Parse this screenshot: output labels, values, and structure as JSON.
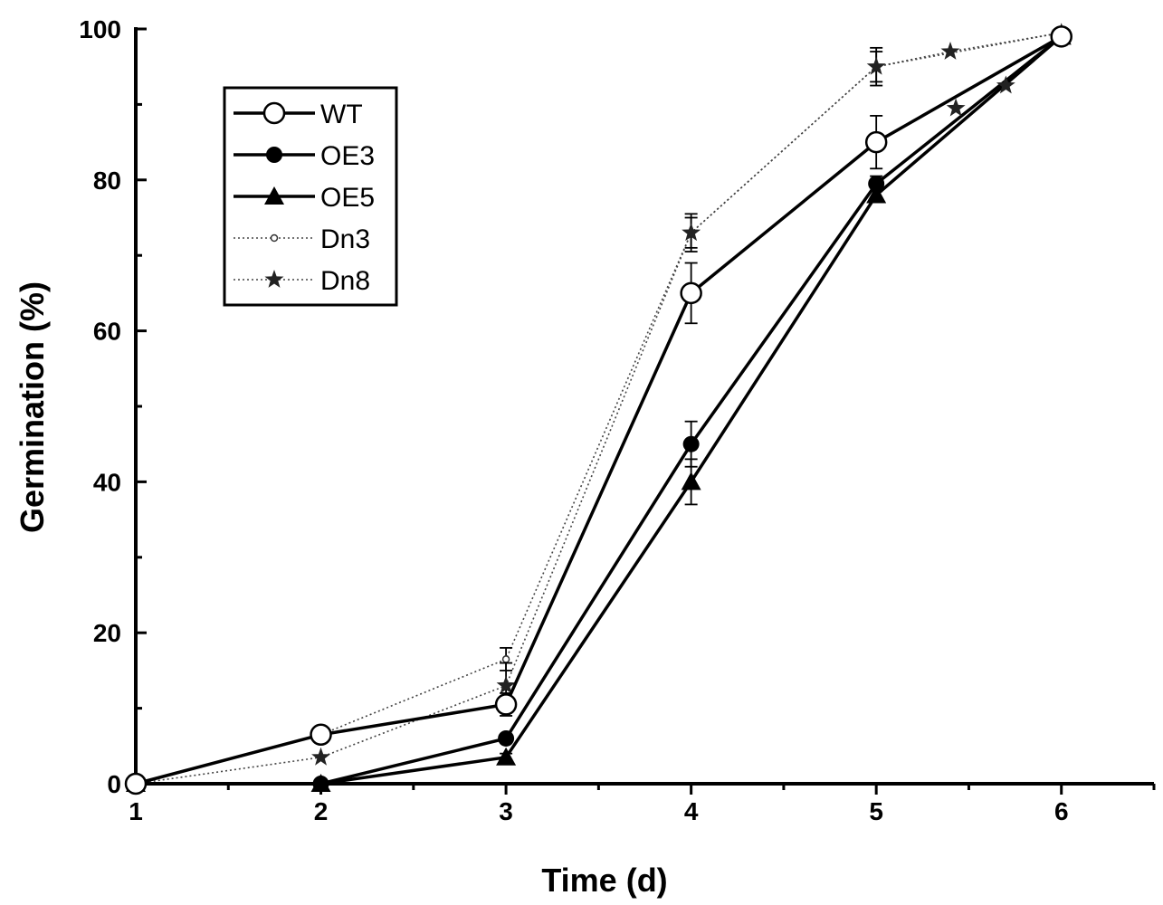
{
  "chart_data": {
    "type": "line",
    "title": "",
    "xlabel": "Time  (d)",
    "ylabel": "Germination (%)",
    "xlim": [
      1,
      6.5
    ],
    "ylim": [
      0,
      100
    ],
    "xticks": [
      1,
      2,
      3,
      4,
      5,
      6
    ],
    "yticks": [
      0,
      20,
      40,
      60,
      80,
      100
    ],
    "legend_position": "top-left",
    "series": [
      {
        "name": "WT",
        "style": "solid",
        "marker": "open-circle",
        "x": [
          1,
          2,
          3,
          4,
          5,
          6
        ],
        "values": [
          0,
          6.5,
          10.5,
          65,
          85,
          99
        ],
        "errors": [
          0,
          0.5,
          1.5,
          4,
          3.5,
          0.5
        ]
      },
      {
        "name": "OE3",
        "style": "solid",
        "marker": "filled-circle",
        "x": [
          1,
          2,
          3,
          4,
          5,
          6
        ],
        "values": [
          0,
          0,
          6,
          45,
          79.5,
          99
        ],
        "errors": [
          0,
          0,
          0.5,
          3,
          1,
          0.5
        ]
      },
      {
        "name": "OE5",
        "style": "solid",
        "marker": "filled-triangle",
        "x": [
          1,
          2,
          3,
          4,
          5,
          6
        ],
        "values": [
          0,
          0,
          3.5,
          40,
          78,
          99
        ],
        "errors": [
          0,
          0,
          0.5,
          3,
          0.5,
          0.5
        ]
      },
      {
        "name": "Dn3",
        "style": "dotted",
        "marker": "small-circle",
        "x": [
          1,
          2,
          3,
          4,
          5,
          6
        ],
        "values": [
          0,
          6.5,
          16.5,
          73,
          95,
          99.5
        ],
        "errors": [
          0,
          0.5,
          1.5,
          2.5,
          2.5,
          0.5
        ]
      },
      {
        "name": "Dn8",
        "style": "dotted",
        "marker": "star",
        "x": [
          1,
          2,
          3,
          4,
          5,
          5.4,
          6
        ],
        "values": [
          0,
          3.5,
          13,
          73,
          95,
          97,
          99.5
        ],
        "errors": [
          0,
          0,
          3,
          2,
          2,
          0,
          0
        ]
      }
    ],
    "extra_marks": [
      {
        "series": "Dn8",
        "x": [
          5.43,
          5.7
        ],
        "values": [
          89.5,
          92.5
        ]
      }
    ]
  }
}
